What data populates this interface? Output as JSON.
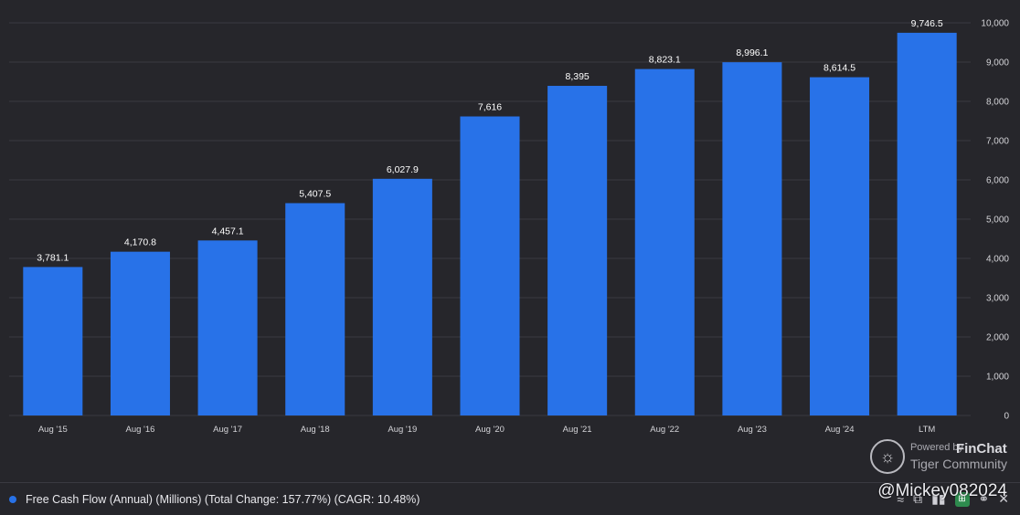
{
  "chart_data": {
    "type": "bar",
    "categories": [
      "Aug '15",
      "Aug '16",
      "Aug '17",
      "Aug '18",
      "Aug '19",
      "Aug '20",
      "Aug '21",
      "Aug '22",
      "Aug '23",
      "Aug '24",
      "LTM"
    ],
    "values": [
      3781.1,
      4170.8,
      4457.1,
      5407.5,
      6027.9,
      7616,
      8395,
      8823.1,
      8996.1,
      8614.5,
      9746.5
    ],
    "value_labels": [
      "3,781.1",
      "4,170.8",
      "4,457.1",
      "5,407.5",
      "6,027.9",
      "7,616",
      "8,395",
      "8,823.1",
      "8,996.1",
      "8,614.5",
      "9,746.5"
    ],
    "y_ticks": [
      0,
      1000,
      2000,
      3000,
      4000,
      5000,
      6000,
      7000,
      8000,
      9000,
      10000
    ],
    "y_tick_labels": [
      "0",
      "1,000",
      "2,000",
      "3,000",
      "4,000",
      "5,000",
      "6,000",
      "7,000",
      "8,000",
      "9,000",
      "10,000"
    ],
    "ylim": [
      0,
      10000
    ],
    "y_axis_side": "right",
    "grid": true,
    "series_name": "Free Cash Flow (Annual) (Millions) (Total Change: 157.77%) (CAGR: 10.48%)",
    "bar_color": "#2872e8"
  },
  "watermark": {
    "powered_by": "Powered by",
    "finchat": "FinChat",
    "tiger": "Tiger Community"
  },
  "user_handle": "@Mickey082024",
  "colors": {
    "background": "#26262b",
    "grid": "#3a3a41",
    "bar": "#2872e8"
  }
}
